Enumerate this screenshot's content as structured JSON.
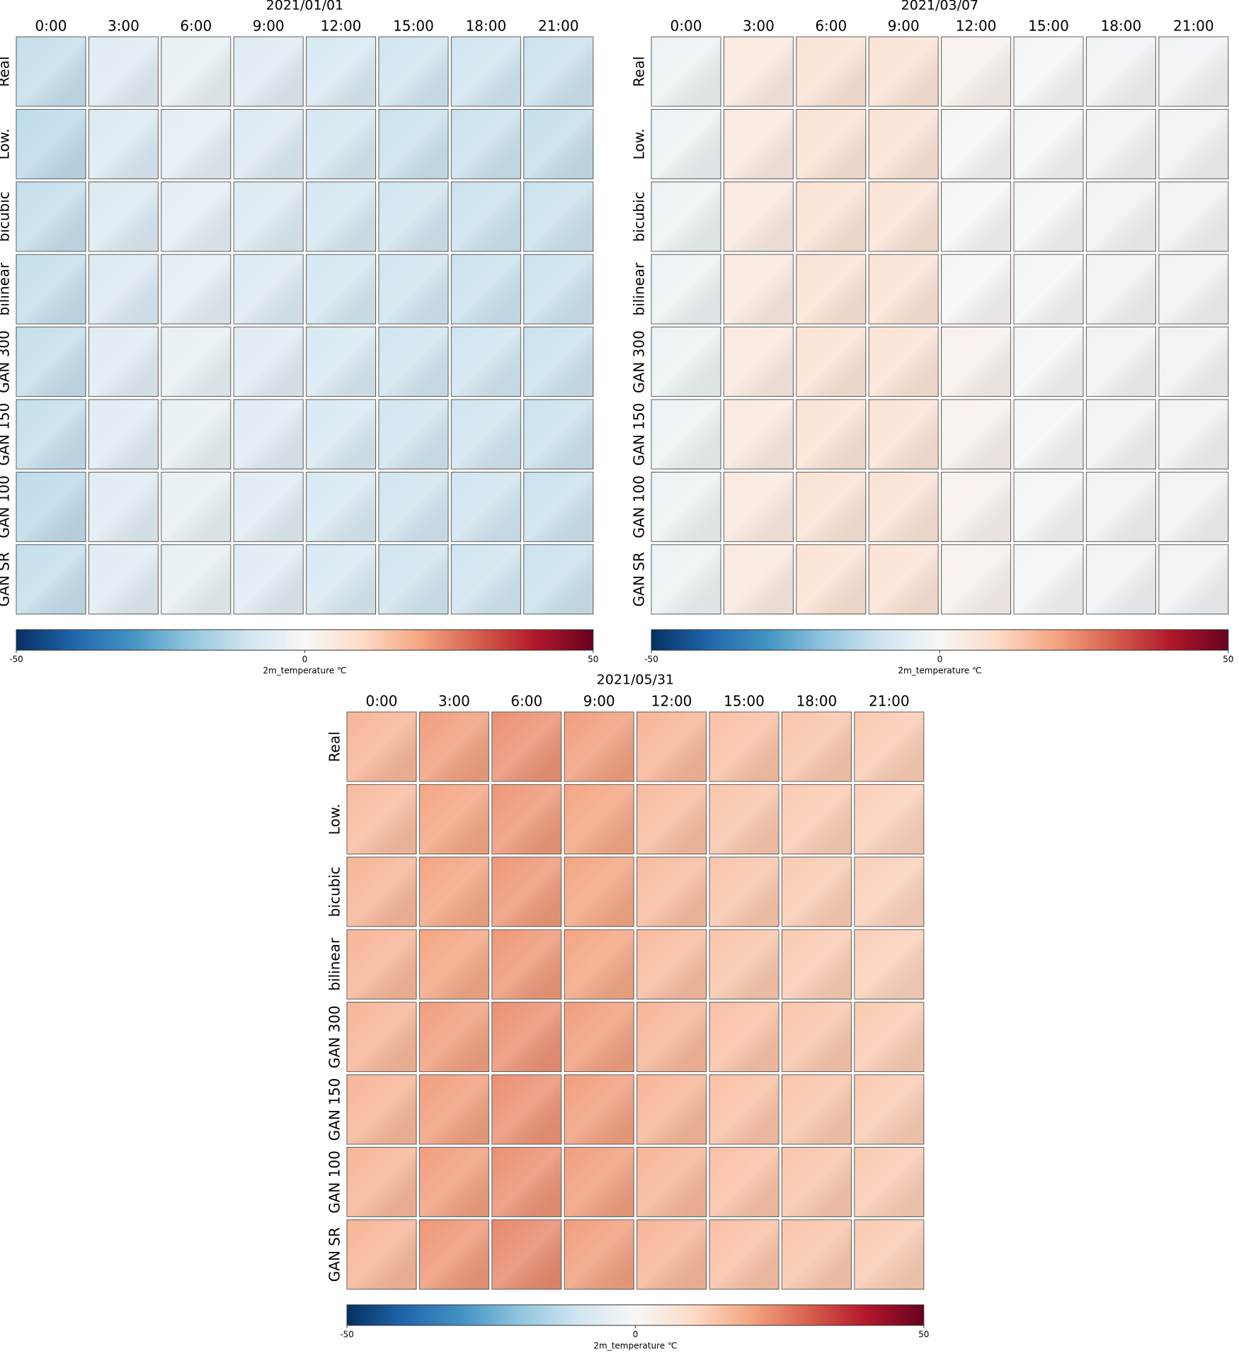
{
  "chart_data": [
    {
      "type": "heatmap",
      "title": "2021/01/01",
      "categories": [
        "0:00",
        "3:00",
        "6:00",
        "9:00",
        "12:00",
        "15:00",
        "18:00",
        "21:00"
      ],
      "rows": [
        "Real",
        "Low.",
        "bicubic",
        "bilinear",
        "GAN 300",
        "GAN 150",
        "GAN 100",
        "GAN SR"
      ],
      "values": [
        [
          -12,
          -6,
          -4,
          -6,
          -8,
          -10,
          -10,
          -11
        ],
        [
          -13,
          -7,
          -5,
          -7,
          -9,
          -11,
          -11,
          -12
        ],
        [
          -12,
          -7,
          -5,
          -7,
          -9,
          -10,
          -11,
          -11
        ],
        [
          -12,
          -7,
          -5,
          -7,
          -9,
          -10,
          -11,
          -11
        ],
        [
          -12,
          -6,
          -4,
          -6,
          -8,
          -10,
          -10,
          -11
        ],
        [
          -12,
          -6,
          -4,
          -6,
          -8,
          -10,
          -10,
          -11
        ],
        [
          -13,
          -6,
          -4,
          -6,
          -8,
          -10,
          -10,
          -11
        ],
        [
          -12,
          -6,
          -4,
          -6,
          -8,
          -10,
          -10,
          -11
        ]
      ],
      "colormap": "RdBu_r",
      "clim": [
        -50,
        50
      ],
      "cticks": [
        -50,
        0,
        50
      ],
      "colorbar_label": "2m_temperature ℃"
    },
    {
      "type": "heatmap",
      "title": "2021/03/07",
      "categories": [
        "0:00",
        "3:00",
        "6:00",
        "9:00",
        "12:00",
        "15:00",
        "18:00",
        "21:00"
      ],
      "rows": [
        "Real",
        "Low.",
        "bicubic",
        "bilinear",
        "GAN 300",
        "GAN 150",
        "GAN 100",
        "GAN SR"
      ],
      "values": [
        [
          -3,
          5,
          7,
          7,
          2,
          -1,
          -2,
          -2
        ],
        [
          -3,
          5,
          7,
          7,
          1,
          -1,
          -2,
          -2
        ],
        [
          -3,
          5,
          7,
          7,
          1,
          -1,
          -2,
          -2
        ],
        [
          -3,
          5,
          7,
          7,
          1,
          -1,
          -2,
          -2
        ],
        [
          -3,
          5,
          7,
          7,
          2,
          -1,
          -2,
          -2
        ],
        [
          -3,
          5,
          7,
          7,
          2,
          -1,
          -2,
          -2
        ],
        [
          -3,
          5,
          7,
          7,
          2,
          -1,
          -2,
          -2
        ],
        [
          -3,
          5,
          7,
          7,
          2,
          -1,
          -2,
          -2
        ]
      ],
      "colormap": "RdBu_r",
      "clim": [
        -50,
        50
      ],
      "cticks": [
        -50,
        0,
        50
      ],
      "colorbar_label": "2m_temperature ℃"
    },
    {
      "type": "heatmap",
      "title": "2021/05/31",
      "categories": [
        "0:00",
        "3:00",
        "6:00",
        "9:00",
        "12:00",
        "15:00",
        "18:00",
        "21:00"
      ],
      "rows": [
        "Real",
        "Low.",
        "bicubic",
        "bilinear",
        "GAN 300",
        "GAN 150",
        "GAN 100",
        "GAN SR"
      ],
      "values": [
        [
          17,
          21,
          23,
          21,
          17,
          15,
          14,
          13
        ],
        [
          16,
          20,
          22,
          20,
          16,
          14,
          13,
          12
        ],
        [
          17,
          20,
          22,
          20,
          16,
          14,
          13,
          12
        ],
        [
          17,
          20,
          22,
          20,
          16,
          14,
          13,
          12
        ],
        [
          17,
          21,
          23,
          21,
          17,
          15,
          14,
          13
        ],
        [
          17,
          21,
          23,
          21,
          17,
          15,
          14,
          13
        ],
        [
          17,
          21,
          23,
          21,
          17,
          15,
          14,
          13
        ],
        [
          17,
          22,
          24,
          21,
          17,
          15,
          14,
          13
        ]
      ],
      "colormap": "RdBu_r",
      "clim": [
        -50,
        50
      ],
      "cticks": [
        -50,
        0,
        50
      ],
      "colorbar_label": "2m_temperature ℃"
    }
  ]
}
